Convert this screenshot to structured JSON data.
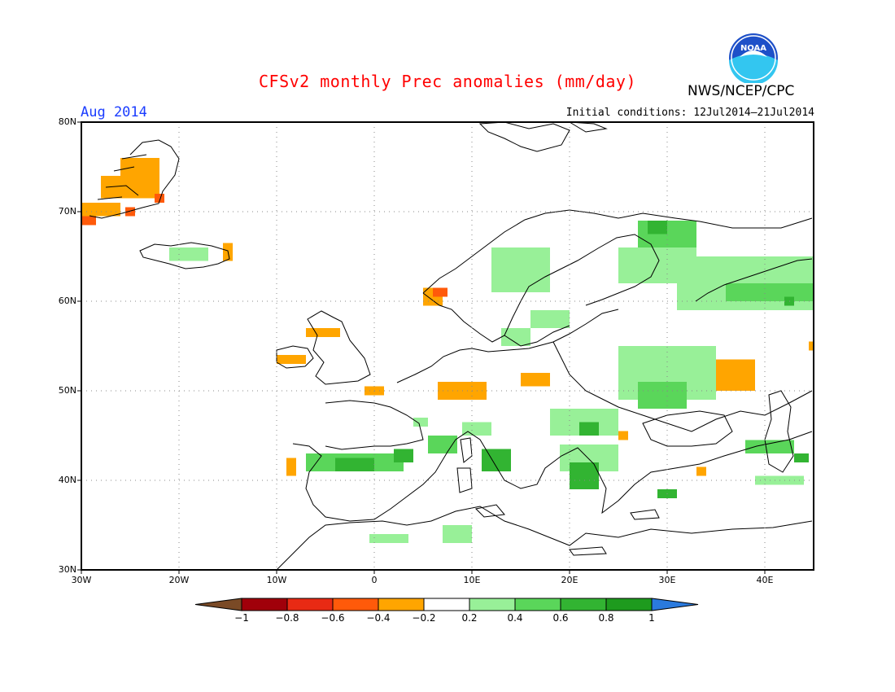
{
  "title": "CFSv2 monthly Prec anomalies (mm/day)",
  "agency": "NWS/NCEP/CPC",
  "logo_text": "NOAA",
  "month_label": "Aug 2014",
  "initial_conditions": "Initial conditions: 12Jul2014—21Jul2014",
  "map": {
    "lon_range": [
      -30,
      45
    ],
    "lat_range": [
      30,
      80
    ],
    "gridlines": "dotted",
    "lat_labels": [
      "80N",
      "70N",
      "60N",
      "50N",
      "40N",
      "30N"
    ],
    "lat_values": [
      80,
      70,
      60,
      50,
      40,
      30
    ],
    "lon_labels": [
      "30W",
      "20W",
      "10W",
      "0",
      "10E",
      "20E",
      "30E",
      "40E"
    ],
    "lon_values": [
      -30,
      -20,
      -10,
      0,
      10,
      20,
      30,
      40
    ]
  },
  "colorbar": {
    "labels": [
      "−1",
      "−0.8",
      "−0.6",
      "−0.4",
      "−0.2",
      "0.2",
      "0.4",
      "0.6",
      "0.8",
      "1"
    ],
    "colors": [
      "#a0000a",
      "#e82a14",
      "#ff5a0a",
      "#ffa500",
      "#ffffff",
      "#98f098",
      "#5ad65a",
      "#32b432",
      "#1e9b1e"
    ],
    "low_end_color": "#7a4a26",
    "high_end_color": "#2a7ade"
  },
  "anomaly_patches": [
    {
      "lon": -26,
      "lat": 74,
      "w": 4,
      "h": 2,
      "cls": -0.3
    },
    {
      "lon": -28,
      "lat": 71.5,
      "w": 6,
      "h": 2.5,
      "cls": -0.3
    },
    {
      "lon": -30,
      "lat": 69.5,
      "w": 4,
      "h": 1.5,
      "cls": -0.3
    },
    {
      "lon": -30,
      "lat": 68.5,
      "w": 1.5,
      "h": 1,
      "cls": -0.5
    },
    {
      "lon": -22.5,
      "lat": 71,
      "w": 1,
      "h": 1,
      "cls": -0.5
    },
    {
      "lon": -25.5,
      "lat": 69.5,
      "w": 1,
      "h": 1,
      "cls": -0.5
    },
    {
      "lon": -21,
      "lat": 64.5,
      "w": 4,
      "h": 1.5,
      "cls": 0.3
    },
    {
      "lon": -15.5,
      "lat": 64.5,
      "w": 1,
      "h": 2,
      "cls": -0.3
    },
    {
      "lon": 5,
      "lat": 59.5,
      "w": 2,
      "h": 2,
      "cls": -0.3
    },
    {
      "lon": 6,
      "lat": 60.5,
      "w": 1.5,
      "h": 1,
      "cls": -0.5
    },
    {
      "lon": -7,
      "lat": 56,
      "w": 2,
      "h": 1,
      "cls": -0.3
    },
    {
      "lon": -5.5,
      "lat": 56,
      "w": 2,
      "h": 1,
      "cls": -0.3
    },
    {
      "lon": -10,
      "lat": 53,
      "w": 3,
      "h": 1,
      "cls": -0.3
    },
    {
      "lon": -1,
      "lat": 49.5,
      "w": 2,
      "h": 1,
      "cls": -0.3
    },
    {
      "lon": 6.5,
      "lat": 49,
      "w": 5,
      "h": 2,
      "cls": -0.3
    },
    {
      "lon": 15,
      "lat": 50.5,
      "w": 3,
      "h": 1.5,
      "cls": -0.3
    },
    {
      "lon": 35,
      "lat": 50,
      "w": 4,
      "h": 3.5,
      "cls": -0.3
    },
    {
      "lon": 44.5,
      "lat": 54.5,
      "w": 0.5,
      "h": 1,
      "cls": -0.3
    },
    {
      "lon": 25,
      "lat": 44.5,
      "w": 1,
      "h": 1,
      "cls": -0.3
    },
    {
      "lon": 33,
      "lat": 40.5,
      "w": 1,
      "h": 1,
      "cls": -0.3
    },
    {
      "lon": -9,
      "lat": 40.5,
      "w": 1,
      "h": 2,
      "cls": -0.3
    },
    {
      "lon": 12,
      "lat": 61,
      "w": 6,
      "h": 5,
      "cls": 0.3
    },
    {
      "lon": 16,
      "lat": 57,
      "w": 4,
      "h": 2,
      "cls": 0.3
    },
    {
      "lon": 13,
      "lat": 55,
      "w": 3,
      "h": 2,
      "cls": 0.3
    },
    {
      "lon": 25,
      "lat": 62,
      "w": 8,
      "h": 4,
      "cls": 0.3
    },
    {
      "lon": 27,
      "lat": 66,
      "w": 6,
      "h": 3,
      "cls": 0.5
    },
    {
      "lon": 28,
      "lat": 67.5,
      "w": 2,
      "h": 1.5,
      "cls": 0.7
    },
    {
      "lon": 31,
      "lat": 59,
      "w": 14,
      "h": 6,
      "cls": 0.3
    },
    {
      "lon": 36,
      "lat": 60,
      "w": 9,
      "h": 2,
      "cls": 0.5
    },
    {
      "lon": 42,
      "lat": 59.5,
      "w": 1,
      "h": 1,
      "cls": 0.7
    },
    {
      "lon": 25,
      "lat": 49,
      "w": 10,
      "h": 6,
      "cls": 0.3
    },
    {
      "lon": 27,
      "lat": 48,
      "w": 5,
      "h": 3,
      "cls": 0.5
    },
    {
      "lon": 18,
      "lat": 45,
      "w": 7,
      "h": 3,
      "cls": 0.3
    },
    {
      "lon": 21,
      "lat": 45,
      "w": 2,
      "h": 1.5,
      "cls": 0.7
    },
    {
      "lon": -7,
      "lat": 41,
      "w": 10,
      "h": 2,
      "cls": 0.5
    },
    {
      "lon": -4,
      "lat": 41,
      "w": 4,
      "h": 1.5,
      "cls": 0.7
    },
    {
      "lon": 2,
      "lat": 42,
      "w": 2,
      "h": 1.5,
      "cls": 0.7
    },
    {
      "lon": 5.5,
      "lat": 43,
      "w": 3,
      "h": 2,
      "cls": 0.5
    },
    {
      "lon": 11,
      "lat": 41,
      "w": 3,
      "h": 2.5,
      "cls": 0.7
    },
    {
      "lon": 19,
      "lat": 41,
      "w": 6,
      "h": 3,
      "cls": 0.3
    },
    {
      "lon": 20,
      "lat": 39,
      "w": 3,
      "h": 3,
      "cls": 0.7
    },
    {
      "lon": 9,
      "lat": 45,
      "w": 3,
      "h": 1.5,
      "cls": 0.3
    },
    {
      "lon": 38,
      "lat": 43,
      "w": 5,
      "h": 1.5,
      "cls": 0.5
    },
    {
      "lon": 43,
      "lat": 42,
      "w": 1.5,
      "h": 1,
      "cls": 0.7
    },
    {
      "lon": 29,
      "lat": 38,
      "w": 2,
      "h": 1,
      "cls": 0.7
    },
    {
      "lon": 39,
      "lat": 39.5,
      "w": 5,
      "h": 1,
      "cls": 0.3
    },
    {
      "lon": 7,
      "lat": 33,
      "w": 3,
      "h": 2,
      "cls": 0.3
    },
    {
      "lon": -0.5,
      "lat": 33,
      "w": 4,
      "h": 1,
      "cls": 0.3
    },
    {
      "lon": 4,
      "lat": 46,
      "w": 1.5,
      "h": 1,
      "cls": 0.3
    }
  ]
}
